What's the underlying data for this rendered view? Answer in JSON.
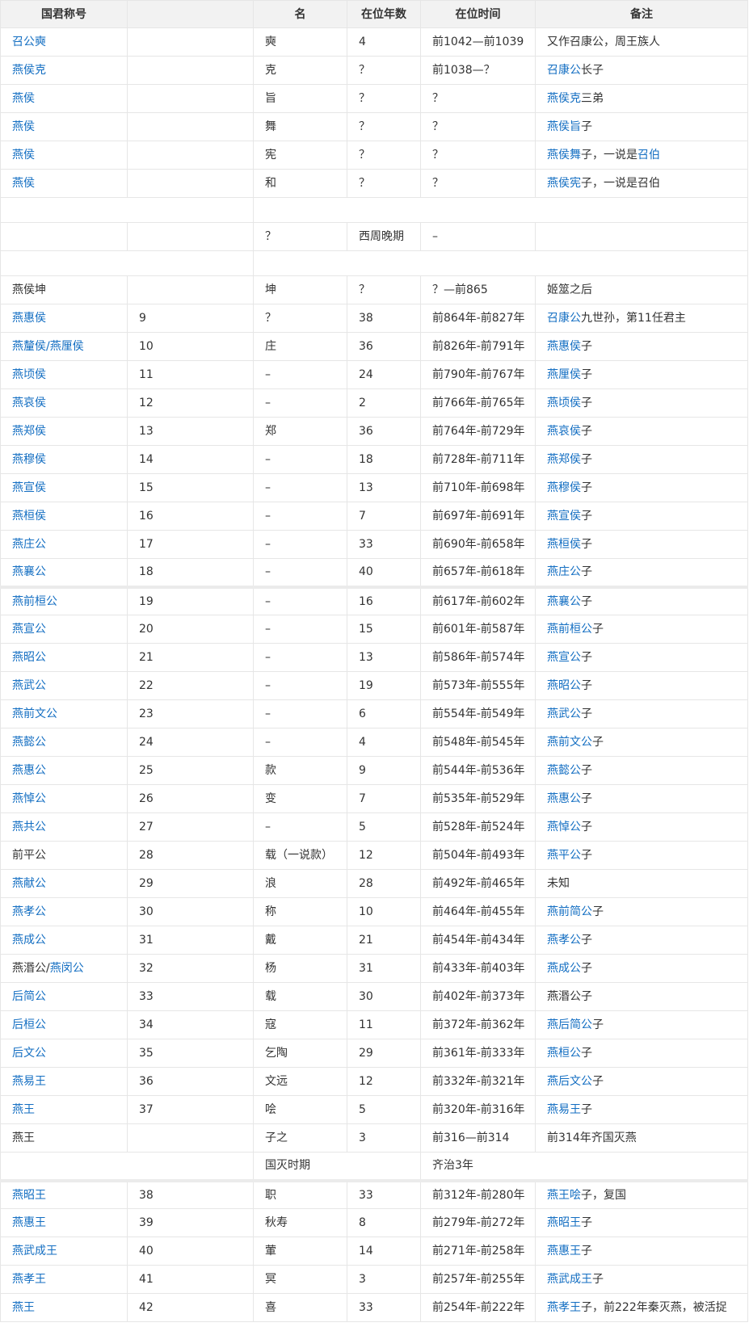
{
  "headers": [
    "国君称号",
    "",
    "名",
    "在位年数",
    "在位时间",
    "备注"
  ],
  "rows": [
    {
      "title": [
        {
          "t": "召公奭",
          "l": true
        }
      ],
      "no": "",
      "name": "奭",
      "years": "4",
      "period": "前1042—前1039",
      "note": [
        {
          "t": "又作召康公，周王族人"
        }
      ]
    },
    {
      "title": [
        {
          "t": "燕侯克",
          "l": true
        }
      ],
      "no": "",
      "name": "克",
      "years": "？",
      "period": "前1038—？",
      "note": [
        {
          "t": "召康公",
          "l": true
        },
        {
          "t": "长子"
        }
      ]
    },
    {
      "title": [
        {
          "t": "燕侯",
          "l": true
        }
      ],
      "no": "",
      "name": "旨",
      "years": "？",
      "period": "？",
      "note": [
        {
          "t": "燕侯克",
          "l": true
        },
        {
          "t": "三弟"
        }
      ]
    },
    {
      "title": [
        {
          "t": "燕侯",
          "l": true
        }
      ],
      "no": "",
      "name": "舞",
      "years": "？",
      "period": "？",
      "note": [
        {
          "t": "燕侯旨",
          "l": true
        },
        {
          "t": "子"
        }
      ]
    },
    {
      "title": [
        {
          "t": "燕侯",
          "l": true
        }
      ],
      "no": "",
      "name": "宪",
      "years": "？",
      "period": "？",
      "note": [
        {
          "t": "燕侯舞",
          "l": true
        },
        {
          "t": "子，一说是"
        },
        {
          "t": "召伯",
          "l": true
        }
      ]
    },
    {
      "title": [
        {
          "t": "燕侯",
          "l": true
        }
      ],
      "no": "",
      "name": "和",
      "years": "？",
      "period": "？",
      "note": [
        {
          "t": "燕侯宪",
          "l": true
        },
        {
          "t": "子，一说是召伯"
        }
      ]
    },
    {
      "blank": true
    },
    {
      "title": [],
      "no": "",
      "name": "？",
      "years": "西周晚期",
      "period": "–",
      "note": []
    },
    {
      "blank": true
    },
    {
      "title": [
        {
          "t": "燕侯坤"
        }
      ],
      "no": "",
      "name": "坤",
      "years": "？",
      "period": "？—前865",
      "note": [
        {
          "t": "姬筮之后"
        }
      ]
    },
    {
      "title": [
        {
          "t": "燕惠侯",
          "l": true
        }
      ],
      "no": "9",
      "name": "？",
      "years": "38",
      "period": "前864年-前827年",
      "note": [
        {
          "t": "召康公",
          "l": true
        },
        {
          "t": "九世孙，第11任君主"
        }
      ]
    },
    {
      "title": [
        {
          "t": "燕釐侯/燕厘侯",
          "l": true
        }
      ],
      "no": "10",
      "name": "庄",
      "years": "36",
      "period": "前826年-前791年",
      "note": [
        {
          "t": "燕惠侯",
          "l": true
        },
        {
          "t": "子"
        }
      ]
    },
    {
      "title": [
        {
          "t": "燕顷侯",
          "l": true
        }
      ],
      "no": "11",
      "name": "–",
      "years": "24",
      "period": "前790年-前767年",
      "note": [
        {
          "t": "燕厘侯",
          "l": true
        },
        {
          "t": "子"
        }
      ]
    },
    {
      "title": [
        {
          "t": "燕哀侯",
          "l": true
        }
      ],
      "no": "12",
      "name": "–",
      "years": "2",
      "period": "前766年-前765年",
      "note": [
        {
          "t": "燕顷侯",
          "l": true
        },
        {
          "t": "子"
        }
      ]
    },
    {
      "title": [
        {
          "t": "燕郑侯",
          "l": true
        }
      ],
      "no": "13",
      "name": "郑",
      "years": "36",
      "period": "前764年-前729年",
      "note": [
        {
          "t": "燕哀侯",
          "l": true
        },
        {
          "t": "子"
        }
      ]
    },
    {
      "title": [
        {
          "t": "燕穆侯",
          "l": true
        }
      ],
      "no": "14",
      "name": "–",
      "years": "18",
      "period": "前728年-前711年",
      "note": [
        {
          "t": "燕郑侯",
          "l": true
        },
        {
          "t": "子"
        }
      ]
    },
    {
      "title": [
        {
          "t": "燕宣侯",
          "l": true
        }
      ],
      "no": "15",
      "name": "–",
      "years": "13",
      "period": "前710年-前698年",
      "note": [
        {
          "t": "燕穆侯",
          "l": true
        },
        {
          "t": "子"
        }
      ]
    },
    {
      "title": [
        {
          "t": "燕桓侯",
          "l": true
        }
      ],
      "no": "16",
      "name": "–",
      "years": "7",
      "period": "前697年-前691年",
      "note": [
        {
          "t": "燕宣侯",
          "l": true
        },
        {
          "t": "子"
        }
      ]
    },
    {
      "title": [
        {
          "t": "燕庄公",
          "l": true
        }
      ],
      "no": "17",
      "name": "–",
      "years": "33",
      "period": "前690年-前658年",
      "note": [
        {
          "t": "燕桓侯",
          "l": true
        },
        {
          "t": "子"
        }
      ]
    },
    {
      "title": [
        {
          "t": "燕襄公",
          "l": true
        }
      ],
      "no": "18",
      "name": "–",
      "years": "40",
      "period": "前657年-前618年",
      "note": [
        {
          "t": "燕庄公",
          "l": true
        },
        {
          "t": "子"
        }
      ]
    },
    {
      "sep": true,
      "title": [
        {
          "t": "燕前桓公",
          "l": true
        }
      ],
      "no": "19",
      "name": "–",
      "years": "16",
      "period": "前617年-前602年",
      "note": [
        {
          "t": "燕襄公",
          "l": true
        },
        {
          "t": "子"
        }
      ]
    },
    {
      "title": [
        {
          "t": "燕宣公",
          "l": true
        }
      ],
      "no": "20",
      "name": "–",
      "years": "15",
      "period": "前601年-前587年",
      "note": [
        {
          "t": "燕前桓公",
          "l": true
        },
        {
          "t": "子"
        }
      ]
    },
    {
      "title": [
        {
          "t": "燕昭公",
          "l": true
        }
      ],
      "no": "21",
      "name": "–",
      "years": "13",
      "period": "前586年-前574年",
      "note": [
        {
          "t": "燕宣公",
          "l": true
        },
        {
          "t": "子"
        }
      ]
    },
    {
      "title": [
        {
          "t": "燕武公",
          "l": true
        }
      ],
      "no": "22",
      "name": "–",
      "years": "19",
      "period": "前573年-前555年",
      "note": [
        {
          "t": "燕昭公",
          "l": true
        },
        {
          "t": "子"
        }
      ]
    },
    {
      "title": [
        {
          "t": "燕前文公",
          "l": true
        }
      ],
      "no": "23",
      "name": "–",
      "years": "6",
      "period": "前554年-前549年",
      "note": [
        {
          "t": "燕武公",
          "l": true
        },
        {
          "t": "子"
        }
      ]
    },
    {
      "title": [
        {
          "t": "燕懿公",
          "l": true
        }
      ],
      "no": "24",
      "name": "–",
      "years": "4",
      "period": "前548年-前545年",
      "note": [
        {
          "t": "燕前文公",
          "l": true
        },
        {
          "t": "子"
        }
      ]
    },
    {
      "title": [
        {
          "t": "燕惠公",
          "l": true
        }
      ],
      "no": "25",
      "name": "款",
      "years": "9",
      "period": "前544年-前536年",
      "note": [
        {
          "t": "燕懿公",
          "l": true
        },
        {
          "t": "子"
        }
      ]
    },
    {
      "title": [
        {
          "t": "燕悼公",
          "l": true
        }
      ],
      "no": "26",
      "name": "变",
      "years": "7",
      "period": "前535年-前529年",
      "note": [
        {
          "t": "燕惠公",
          "l": true
        },
        {
          "t": "子"
        }
      ]
    },
    {
      "title": [
        {
          "t": "燕共公",
          "l": true
        }
      ],
      "no": "27",
      "name": "–",
      "years": "5",
      "period": "前528年-前524年",
      "note": [
        {
          "t": "燕悼公",
          "l": true
        },
        {
          "t": "子"
        }
      ]
    },
    {
      "title": [
        {
          "t": "前平公"
        }
      ],
      "no": "28",
      "name": "载（一说款）",
      "years": "12",
      "period": "前504年-前493年",
      "note": [
        {
          "t": "燕平公",
          "l": true
        },
        {
          "t": "子"
        }
      ]
    },
    {
      "title": [
        {
          "t": "燕献公",
          "l": true
        }
      ],
      "no": "29",
      "name": "浪",
      "years": "28",
      "period": "前492年-前465年",
      "note": [
        {
          "t": "未知"
        }
      ]
    },
    {
      "title": [
        {
          "t": "燕孝公",
          "l": true
        }
      ],
      "no": "30",
      "name": "称",
      "years": "10",
      "period": "前464年-前455年",
      "note": [
        {
          "t": "燕前简公",
          "l": true
        },
        {
          "t": "子"
        }
      ]
    },
    {
      "title": [
        {
          "t": "燕成公",
          "l": true
        }
      ],
      "no": "31",
      "name": "戴",
      "years": "21",
      "period": "前454年-前434年",
      "note": [
        {
          "t": "燕孝公",
          "l": true
        },
        {
          "t": "子"
        }
      ]
    },
    {
      "title": [
        {
          "t": "燕湣公/"
        },
        {
          "t": "燕闵公",
          "l": true
        }
      ],
      "no": "32",
      "name": "杨",
      "years": "31",
      "period": "前433年-前403年",
      "note": [
        {
          "t": "燕成公",
          "l": true
        },
        {
          "t": "子"
        }
      ]
    },
    {
      "title": [
        {
          "t": "后简公",
          "l": true
        }
      ],
      "no": "33",
      "name": "载",
      "years": "30",
      "period": "前402年-前373年",
      "note": [
        {
          "t": "燕湣公子"
        }
      ]
    },
    {
      "title": [
        {
          "t": "后桓公",
          "l": true
        }
      ],
      "no": "34",
      "name": "寇",
      "years": "11",
      "period": "前372年-前362年",
      "note": [
        {
          "t": "燕后简公",
          "l": true
        },
        {
          "t": "子"
        }
      ]
    },
    {
      "title": [
        {
          "t": "后文公",
          "l": true
        }
      ],
      "no": "35",
      "name": "乞陶",
      "years": "29",
      "period": "前361年-前333年",
      "note": [
        {
          "t": "燕桓公",
          "l": true
        },
        {
          "t": "子"
        }
      ]
    },
    {
      "title": [
        {
          "t": "燕易王",
          "l": true
        }
      ],
      "no": "36",
      "name": "文远",
      "years": "12",
      "period": "前332年-前321年",
      "note": [
        {
          "t": "燕后文公",
          "l": true
        },
        {
          "t": "子"
        }
      ]
    },
    {
      "title": [
        {
          "t": "燕王",
          "l": true
        }
      ],
      "no": "37",
      "name": "哙",
      "years": "5",
      "period": "前320年-前316年",
      "note": [
        {
          "t": "燕易王",
          "l": true
        },
        {
          "t": "子"
        }
      ]
    },
    {
      "title": [
        {
          "t": "燕王"
        }
      ],
      "no": "",
      "name": "子之",
      "years": "3",
      "period": "前316—前314",
      "note": [
        {
          "t": "前314年齐国灭燕"
        }
      ]
    },
    {
      "interregnum": true,
      "label": "国灭时期",
      "period": "齐治3年"
    },
    {
      "sep": true,
      "title": [
        {
          "t": "燕昭王",
          "l": true
        }
      ],
      "no": "38",
      "name": "职",
      "years": "33",
      "period": "前312年-前280年",
      "note": [
        {
          "t": "燕王哙",
          "l": true
        },
        {
          "t": "子，复国"
        }
      ]
    },
    {
      "title": [
        {
          "t": "燕惠王",
          "l": true
        }
      ],
      "no": "39",
      "name": "秋寿",
      "years": "8",
      "period": "前279年-前272年",
      "note": [
        {
          "t": "燕昭王",
          "l": true
        },
        {
          "t": "子"
        }
      ]
    },
    {
      "title": [
        {
          "t": "燕武成王",
          "l": true
        }
      ],
      "no": "40",
      "name": "葷",
      "years": "14",
      "period": "前271年-前258年",
      "note": [
        {
          "t": "燕惠王",
          "l": true
        },
        {
          "t": "子"
        }
      ]
    },
    {
      "title": [
        {
          "t": "燕孝王",
          "l": true
        }
      ],
      "no": "41",
      "name": "冥",
      "years": "3",
      "period": "前257年-前255年",
      "note": [
        {
          "t": "燕武成王",
          "l": true
        },
        {
          "t": "子"
        }
      ]
    },
    {
      "title": [
        {
          "t": "燕王",
          "l": true
        }
      ],
      "no": "42",
      "name": "喜",
      "years": "33",
      "period": "前254年-前222年",
      "note": [
        {
          "t": "燕孝王",
          "l": true
        },
        {
          "t": "子，前222年秦灭燕，被活捉"
        }
      ]
    }
  ]
}
